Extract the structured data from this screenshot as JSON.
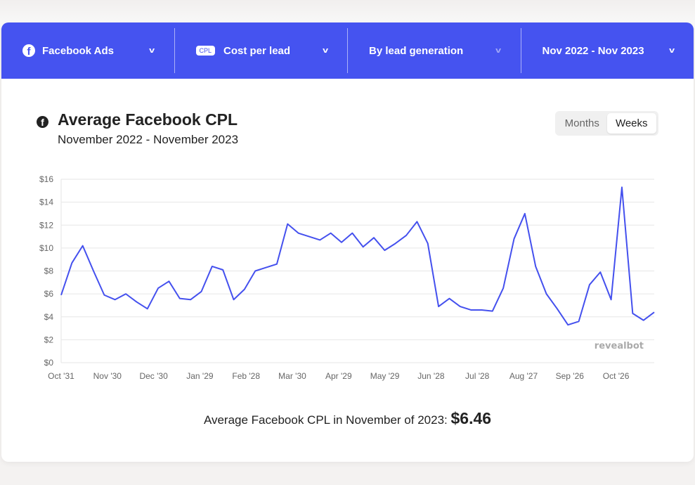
{
  "toolbar": {
    "platform": "Facebook Ads",
    "metric_badge": "CPL",
    "metric": "Cost per lead",
    "grouping": "By lead generation",
    "range": "Nov 2022 - Nov 2023"
  },
  "header": {
    "title": "Average Facebook CPL",
    "subtitle": "November 2022 - November 2023"
  },
  "toggle": {
    "months": "Months",
    "weeks": "Weeks",
    "selected": "Weeks"
  },
  "watermark": "revealbot",
  "summary": {
    "text": "Average Facebook CPL in November of 2023:",
    "value": "$6.46"
  },
  "colors": {
    "accent": "#4553f0",
    "line": "#4450ee"
  },
  "chart_data": {
    "type": "line",
    "title": "Average Facebook CPL",
    "ylim": [
      0,
      16
    ],
    "yticks": [
      "$0",
      "$2",
      "$4",
      "$6",
      "$8",
      "$10",
      "$12",
      "$14",
      "$16"
    ],
    "xticks": [
      "Oct '31",
      "Nov '30",
      "Dec '30",
      "Jan '29",
      "Feb '28",
      "Mar '30",
      "Apr '29",
      "May '29",
      "Jun '28",
      "Jul '28",
      "Aug '27",
      "Sep '26",
      "Oct '26"
    ],
    "values": [
      5.9,
      8.7,
      10.2,
      8.0,
      5.9,
      5.5,
      6.0,
      5.3,
      4.7,
      6.5,
      7.1,
      5.6,
      5.5,
      6.2,
      8.4,
      8.1,
      5.5,
      6.4,
      8.0,
      8.3,
      8.6,
      12.1,
      11.3,
      11.0,
      10.7,
      11.3,
      10.5,
      11.3,
      10.1,
      10.9,
      9.8,
      10.4,
      11.1,
      12.3,
      10.4,
      4.9,
      5.6,
      4.9,
      4.6,
      4.6,
      4.5,
      6.5,
      10.8,
      13.0,
      8.4,
      6.0,
      4.7,
      3.3,
      3.6,
      6.8,
      7.9,
      5.5,
      15.3,
      4.3,
      3.7,
      4.4
    ]
  }
}
